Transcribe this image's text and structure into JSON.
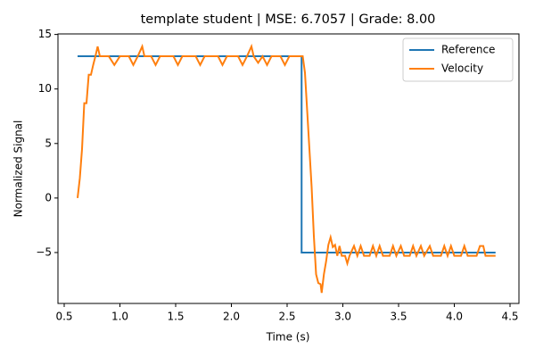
{
  "chart_data": {
    "type": "line",
    "title": "template student | MSE: 6.7057 | Grade: 8.00",
    "x_label": "Time (s)",
    "y_label": "Normalized Signal",
    "legend": "upper right",
    "xlim": [
      0.444,
      4.58
    ],
    "ylim": [
      -9.67,
      15.05
    ],
    "xticks": [
      0.5,
      {
        "value": 1,
        "label": "1.0"
      },
      1.5,
      {
        "value": 2,
        "label": "2.0"
      },
      2.5,
      {
        "value": 3,
        "label": "3.0"
      },
      3.5,
      {
        "value": 4,
        "label": "4.0"
      },
      4.5
    ],
    "yticks": [
      {
        "value": -5,
        "label": "−5"
      },
      0,
      5,
      10,
      15
    ],
    "series": [
      {
        "name": "Reference",
        "color": "#1f77b4",
        "x": [
          0.62,
          2.63,
          2.63,
          4.37
        ],
        "values": [
          13,
          13,
          -5,
          -5
        ]
      },
      {
        "name": "Velocity",
        "color": "#ff7f0e",
        "x": [
          0.62,
          0.64,
          0.66,
          0.68,
          0.7,
          0.72,
          0.74,
          0.76,
          0.78,
          0.8,
          0.82,
          0.9,
          0.95,
          1.0,
          1.08,
          1.12,
          1.16,
          1.2,
          1.22,
          1.28,
          1.32,
          1.36,
          1.48,
          1.52,
          1.56,
          1.68,
          1.72,
          1.76,
          1.88,
          1.92,
          1.96,
          2.06,
          2.1,
          2.14,
          2.18,
          2.2,
          2.24,
          2.28,
          2.32,
          2.36,
          2.44,
          2.48,
          2.52,
          2.64,
          2.66,
          2.68,
          2.7,
          2.72,
          2.74,
          2.76,
          2.78,
          2.8,
          2.81,
          2.83,
          2.85,
          2.87,
          2.89,
          2.91,
          2.93,
          2.95,
          2.97,
          2.99,
          3.02,
          3.04,
          3.06,
          3.1,
          3.13,
          3.16,
          3.19,
          3.24,
          3.27,
          3.3,
          3.33,
          3.36,
          3.42,
          3.45,
          3.48,
          3.52,
          3.55,
          3.6,
          3.63,
          3.66,
          3.7,
          3.73,
          3.78,
          3.81,
          3.88,
          3.91,
          3.94,
          3.97,
          4.0,
          4.06,
          4.09,
          4.12,
          4.2,
          4.23,
          4.26,
          4.28,
          4.37
        ],
        "values": [
          0,
          1.8,
          4.5,
          8.7,
          8.7,
          11.3,
          11.3,
          12.2,
          13.0,
          13.9,
          13.0,
          13.0,
          12.2,
          13.0,
          13.0,
          12.2,
          13.0,
          13.9,
          13.0,
          13.0,
          12.2,
          13.0,
          13.0,
          12.2,
          13.0,
          13.0,
          12.2,
          13.0,
          13.0,
          12.2,
          13.0,
          13.0,
          12.2,
          13.0,
          13.9,
          13.0,
          12.4,
          13.0,
          12.2,
          13.0,
          13.0,
          12.2,
          13.0,
          13.0,
          11.5,
          8,
          4.5,
          1,
          -3.5,
          -7,
          -7.8,
          -7.9,
          -8.7,
          -7,
          -5.8,
          -4.3,
          -3.6,
          -4.5,
          -4.3,
          -5.3,
          -4.4,
          -5.3,
          -5.3,
          -6.0,
          -5.3,
          -4.4,
          -5.3,
          -4.4,
          -5.3,
          -5.3,
          -4.4,
          -5.3,
          -4.4,
          -5.3,
          -5.3,
          -4.4,
          -5.3,
          -4.4,
          -5.3,
          -5.3,
          -4.4,
          -5.3,
          -4.4,
          -5.3,
          -4.4,
          -5.3,
          -5.3,
          -4.4,
          -5.3,
          -4.4,
          -5.3,
          -5.3,
          -4.4,
          -5.3,
          -5.3,
          -4.4,
          -4.4,
          -5.3,
          -5.3
        ]
      }
    ]
  }
}
